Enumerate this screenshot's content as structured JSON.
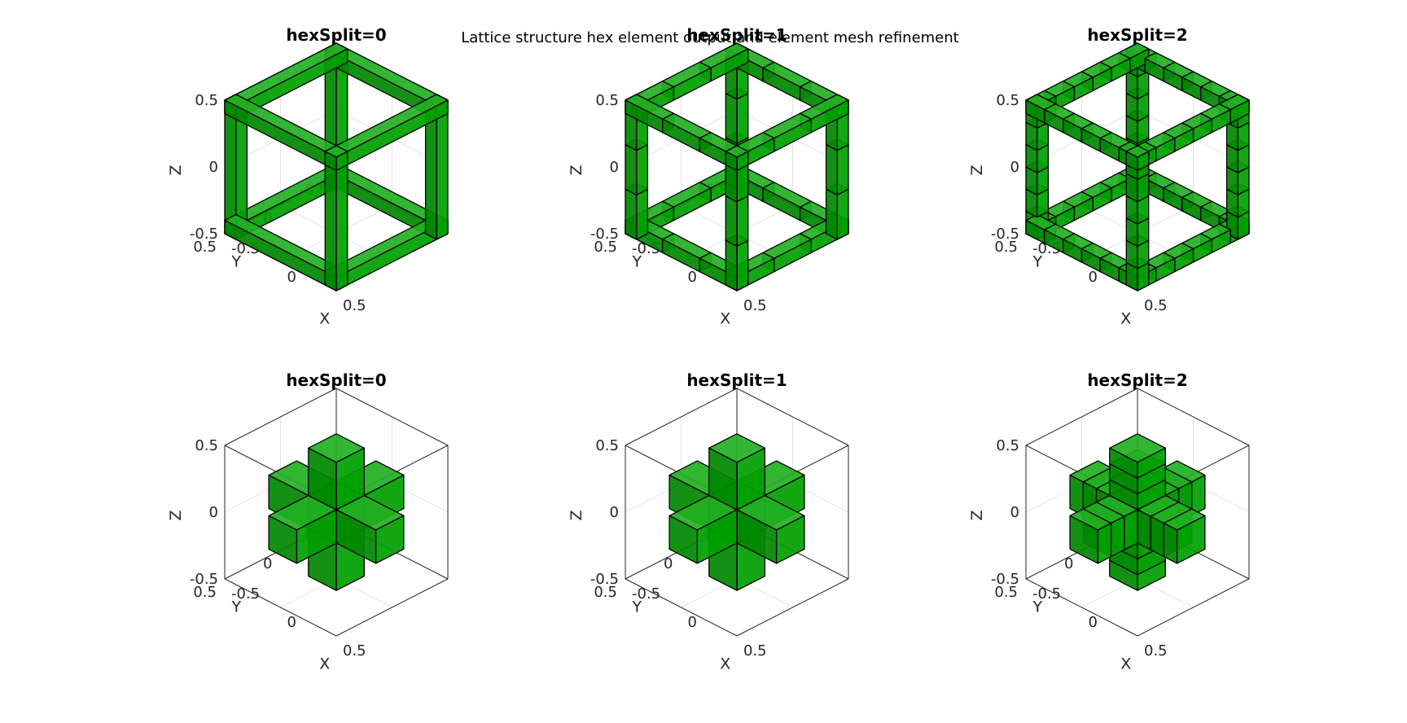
{
  "figure": {
    "suptitle": "Lattice structure hex element output and element mesh refinement"
  },
  "colors": {
    "face": "#00a000",
    "face_shade": "#008800",
    "edge": "#000000",
    "axis": "#262626",
    "grid": "#dcdcdc"
  },
  "panels": [
    {
      "id": "p11",
      "title": "hexSplit=0",
      "structure": "cube-frame",
      "hexSplit": 0
    },
    {
      "id": "p12",
      "title": "hexSplit=1",
      "structure": "cube-frame",
      "hexSplit": 1
    },
    {
      "id": "p13",
      "title": "hexSplit=2",
      "structure": "cube-frame",
      "hexSplit": 2
    },
    {
      "id": "p21",
      "title": "hexSplit=0",
      "structure": "cross",
      "hexSplit": 0
    },
    {
      "id": "p22",
      "title": "hexSplit=1",
      "structure": "cross",
      "hexSplit": 1
    },
    {
      "id": "p23",
      "title": "hexSplit=2",
      "structure": "cross",
      "hexSplit": 2
    }
  ],
  "axes": {
    "xlabel": "X",
    "ylabel": "Y",
    "zlabel": "Z",
    "x_ticks": [
      "-0.5",
      "0",
      "0.5"
    ],
    "y_ticks": [
      "-0.5",
      "0",
      "0.5"
    ],
    "z_ticks": [
      "-0.5",
      "0",
      "0.5"
    ],
    "xlim": [
      -0.5,
      0.5
    ],
    "ylim": [
      -0.5,
      0.5
    ],
    "zlim": [
      -0.5,
      0.5
    ],
    "grid": true
  }
}
